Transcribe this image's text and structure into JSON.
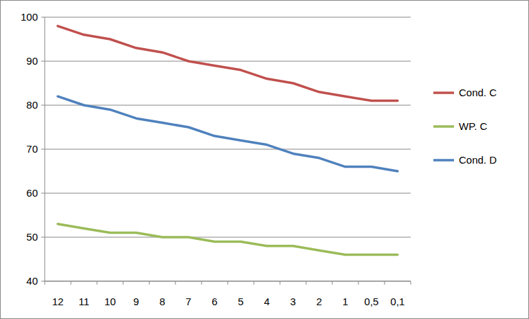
{
  "chart_data": {
    "type": "line",
    "categories": [
      "12",
      "11",
      "10",
      "9",
      "8",
      "7",
      "6",
      "5",
      "4",
      "3",
      "2",
      "1",
      "0,5",
      "0,1"
    ],
    "series": [
      {
        "name": "Cond. C",
        "color": "#c0504d",
        "values": [
          98,
          96,
          95,
          93,
          92,
          90,
          89,
          88,
          86,
          85,
          83,
          82,
          81,
          81
        ]
      },
      {
        "name": "WP. C",
        "color": "#9bbb59",
        "values": [
          53,
          52,
          51,
          51,
          50,
          50,
          49,
          49,
          48,
          48,
          47,
          46,
          46,
          46
        ]
      },
      {
        "name": "Cond. D",
        "color": "#4f81bd",
        "values": [
          82,
          80,
          79,
          77,
          76,
          75,
          73,
          72,
          71,
          69,
          68,
          66,
          66,
          65
        ]
      }
    ],
    "ylim": [
      40,
      100
    ],
    "yticks": [
      40,
      50,
      60,
      70,
      80,
      90,
      100
    ],
    "grid": true,
    "legend": "right"
  }
}
